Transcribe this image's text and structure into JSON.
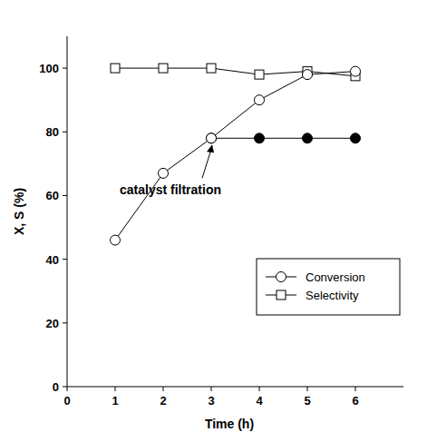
{
  "chart_data": {
    "type": "line",
    "x_label": "Time (h)",
    "y_label": "X, S (%)",
    "x": [
      1,
      2,
      3,
      4,
      5,
      6
    ],
    "series": [
      {
        "name": "Conversion",
        "color": "#000000",
        "marker": "circle",
        "line_style": "solid",
        "values": [
          46,
          67,
          78,
          90,
          98,
          99
        ]
      },
      {
        "name": "Selectivity",
        "color": "#000000",
        "marker": "square",
        "line_style": "solid",
        "values": [
          100,
          100,
          100,
          98,
          99,
          97.5
        ]
      },
      {
        "color": "#000000",
        "marker": "filled-circle",
        "line_style": "solid",
        "values": [
          null,
          null,
          78,
          78,
          78,
          78
        ]
      }
    ],
    "xlim": [
      0,
      7
    ],
    "ylim": [
      0,
      110
    ],
    "xticks": [
      0,
      1,
      2,
      3,
      4,
      5,
      6
    ],
    "yticks": [
      0,
      20,
      40,
      60,
      80,
      100
    ],
    "grid": false,
    "legend": "lower right",
    "annotations": [
      {
        "text": "catalyst filtration",
        "x": 3,
        "y": 78
      }
    ]
  }
}
